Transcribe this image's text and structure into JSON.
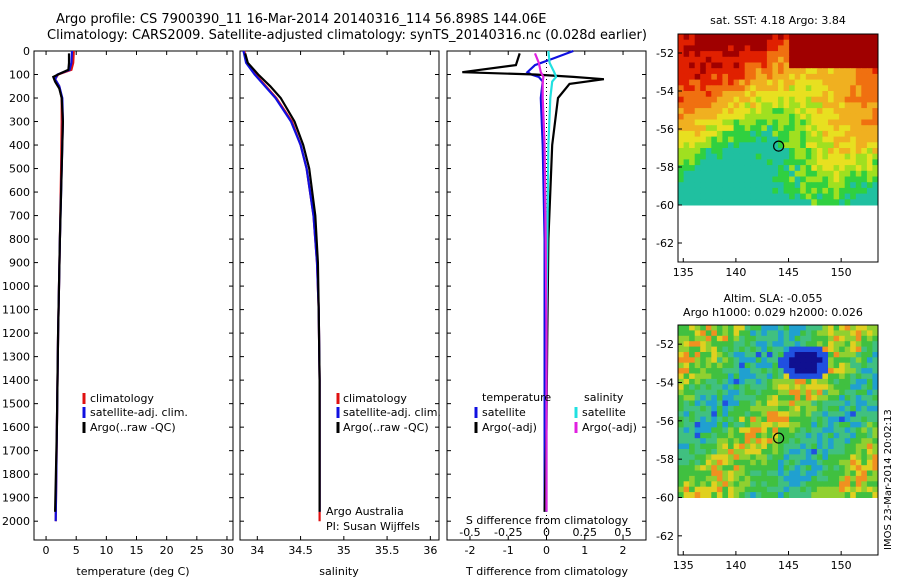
{
  "header": {
    "line1": "Argo profile: CS 7900390_11 16-Mar-2014 20140316_114 56.898S 144.06E",
    "line2": "Climatology: CARS2009. Satellite-adjusted climatology: synTS_20140316.nc (0.028d earlier)"
  },
  "colors": {
    "climatology": "#e01010",
    "satellite": "#1010e0",
    "argo": "#000000",
    "sal_sat": "#20e0e0",
    "sal_argo": "#e020e0"
  },
  "panels": {
    "temperature": {
      "xlabel": "temperature (deg C)",
      "legend": [
        "climatology",
        "satellite-adj. clim.",
        "Argo(..raw -QC)"
      ]
    },
    "salinity": {
      "xlabel": "salinity",
      "legend": [
        "climatology",
        "satellite-adj. clim.",
        "Argo(..raw -QC)"
      ],
      "note1": "Argo Australia",
      "note2": "PI: Susan Wijffels"
    },
    "difference": {
      "xlabel": "T difference from climatology",
      "top_label": "S difference from climatology",
      "legend_t_title": "temperature",
      "legend_s_title": "salinity",
      "legend_t": [
        "satellite",
        "Argo(-adj)"
      ],
      "legend_s": [
        "satellite",
        "Argo(-adj)"
      ]
    },
    "sst_map": {
      "title": "sat. SST: 4.18 Argo: 3.84"
    },
    "sla_map": {
      "title1": "Altim. SLA: -0.055",
      "title2": "Argo h1000: 0.029 h2000: 0.026"
    }
  },
  "side_text": "IMOS 23-Mar-2014 20:02:13",
  "chart_data": [
    {
      "type": "line",
      "title": "",
      "xlabel": "temperature (deg C)",
      "ylabel": "",
      "xlim": [
        -2,
        31
      ],
      "ylim": [
        2080,
        0
      ],
      "xticks": [
        0,
        5,
        10,
        15,
        20,
        25,
        30
      ],
      "yticks": [
        0,
        100,
        200,
        300,
        400,
        500,
        600,
        700,
        800,
        900,
        1000,
        1100,
        1200,
        1300,
        1400,
        1500,
        1600,
        1700,
        1800,
        1900,
        2000
      ],
      "series": [
        {
          "name": "climatology",
          "color": "#e01010",
          "depth": [
            0,
            50,
            80,
            100,
            120,
            150,
            200,
            300,
            500,
            800,
            1200,
            1600,
            2000
          ],
          "values": [
            4.6,
            4.5,
            4.2,
            2.0,
            1.5,
            2.2,
            2.6,
            2.6,
            2.5,
            2.3,
            2.0,
            1.8,
            1.6
          ]
        },
        {
          "name": "satellite-adj. clim.",
          "color": "#1010e0",
          "depth": [
            0,
            50,
            80,
            100,
            120,
            150,
            200,
            300,
            500,
            800,
            1200,
            1600,
            2000
          ],
          "values": [
            4.3,
            4.2,
            3.9,
            1.9,
            1.5,
            2.2,
            2.7,
            2.8,
            2.6,
            2.3,
            2.0,
            1.8,
            1.6
          ]
        },
        {
          "name": "Argo(..raw -QC)",
          "color": "#000000",
          "depth": [
            10,
            50,
            80,
            100,
            110,
            130,
            160,
            200,
            300,
            500,
            800,
            1200,
            1600,
            1960
          ],
          "values": [
            3.8,
            3.8,
            3.7,
            2.0,
            1.2,
            1.5,
            2.2,
            2.6,
            2.8,
            2.6,
            2.3,
            2.0,
            1.8,
            1.5
          ]
        }
      ]
    },
    {
      "type": "line",
      "title": "",
      "xlabel": "salinity",
      "ylabel": "",
      "xlim": [
        33.8,
        36.1
      ],
      "ylim": [
        2080,
        0
      ],
      "xticks": [
        34,
        34.5,
        35,
        35.5,
        36
      ],
      "series": [
        {
          "name": "climatology",
          "color": "#e01010",
          "depth": [
            0,
            50,
            100,
            150,
            200,
            300,
            400,
            500,
            700,
            900,
            1100,
            1400,
            1700,
            2000
          ],
          "values": [
            33.85,
            33.88,
            33.98,
            34.1,
            34.22,
            34.4,
            34.5,
            34.57,
            34.65,
            34.69,
            34.71,
            34.72,
            34.72,
            34.72
          ]
        },
        {
          "name": "satellite-adj. clim.",
          "color": "#1010e0",
          "depth": [
            0,
            50,
            100,
            150,
            200,
            300,
            400,
            500,
            700,
            900,
            1100,
            1400,
            1700,
            1960
          ],
          "values": [
            33.84,
            33.87,
            33.97,
            34.09,
            34.21,
            34.39,
            34.5,
            34.57,
            34.65,
            34.69,
            34.71,
            34.72,
            34.72,
            34.72
          ]
        },
        {
          "name": "Argo(..raw -QC)",
          "color": "#000000",
          "depth": [
            10,
            50,
            100,
            150,
            200,
            300,
            400,
            500,
            700,
            900,
            1100,
            1400,
            1700,
            1960
          ],
          "values": [
            33.86,
            33.89,
            34.01,
            34.15,
            34.27,
            34.43,
            34.53,
            34.6,
            34.67,
            34.7,
            34.71,
            34.72,
            34.72,
            34.72
          ]
        }
      ]
    },
    {
      "type": "line",
      "title": "",
      "xlabel": "T difference from climatology",
      "ylabel": "",
      "xlim": [
        -2.6,
        2.6
      ],
      "ylim": [
        2080,
        0
      ],
      "xticks": [
        -2,
        -1,
        0,
        1,
        2
      ],
      "top_xticks": [
        -0.5,
        -0.25,
        0,
        0.25,
        0.5
      ],
      "series": [
        {
          "name": "temperature satellite",
          "color": "#1010e0",
          "depth": [
            0,
            30,
            60,
            90,
            100,
            110,
            130,
            200,
            400,
            800,
            1200,
            1600,
            1960
          ],
          "values": [
            0.7,
            0.2,
            -0.3,
            -0.5,
            -0.4,
            -0.2,
            -0.1,
            -0.15,
            -0.1,
            -0.05,
            -0.05,
            -0.05,
            -0.05
          ]
        },
        {
          "name": "temperature Argo(-adj)",
          "color": "#000000",
          "depth": [
            10,
            60,
            90,
            100,
            110,
            120,
            140,
            200,
            400,
            800,
            1200,
            1600,
            1960
          ],
          "values": [
            -0.7,
            -0.8,
            -2.2,
            -0.3,
            0.7,
            1.5,
            0.6,
            0.3,
            0.15,
            0.05,
            0.02,
            0.0,
            -0.05
          ]
        },
        {
          "name": "salinity satellite",
          "color": "#20e0e0",
          "depth": [
            0,
            50,
            90,
            110,
            130,
            200,
            400,
            800,
            1200,
            1600,
            1960
          ],
          "values": [
            0.05,
            0.08,
            0.2,
            0.25,
            0.15,
            0.1,
            0.05,
            0.02,
            0.0,
            0.0,
            0.0
          ]
        },
        {
          "name": "salinity Argo(-adj)",
          "color": "#e020e0",
          "depth": [
            10,
            50,
            90,
            110,
            130,
            200,
            400,
            800,
            1200,
            1600,
            1960
          ],
          "values": [
            -0.3,
            -0.2,
            -0.15,
            -0.08,
            -0.1,
            -0.1,
            -0.05,
            -0.02,
            0.0,
            0.0,
            0.0
          ]
        }
      ]
    },
    {
      "type": "heatmap",
      "title": "sat. SST: 4.18 Argo: 3.84",
      "xticks": [
        135,
        140,
        145,
        150
      ],
      "yticks": [
        -52,
        -54,
        -56,
        -58,
        -60,
        -62
      ],
      "xlim": [
        134.5,
        153.5
      ],
      "ylim": [
        -63,
        -51
      ],
      "data_bottom": -60,
      "marker": {
        "lon": 144.06,
        "lat": -56.9
      }
    },
    {
      "type": "heatmap",
      "title": "Altim. SLA: -0.055",
      "xticks": [
        135,
        140,
        145,
        150
      ],
      "yticks": [
        -52,
        -54,
        -56,
        -58,
        -60,
        -62
      ],
      "xlim": [
        134.5,
        153.5
      ],
      "ylim": [
        -63,
        -51
      ],
      "data_bottom": -60,
      "marker": {
        "lon": 144.06,
        "lat": -56.9
      }
    }
  ]
}
